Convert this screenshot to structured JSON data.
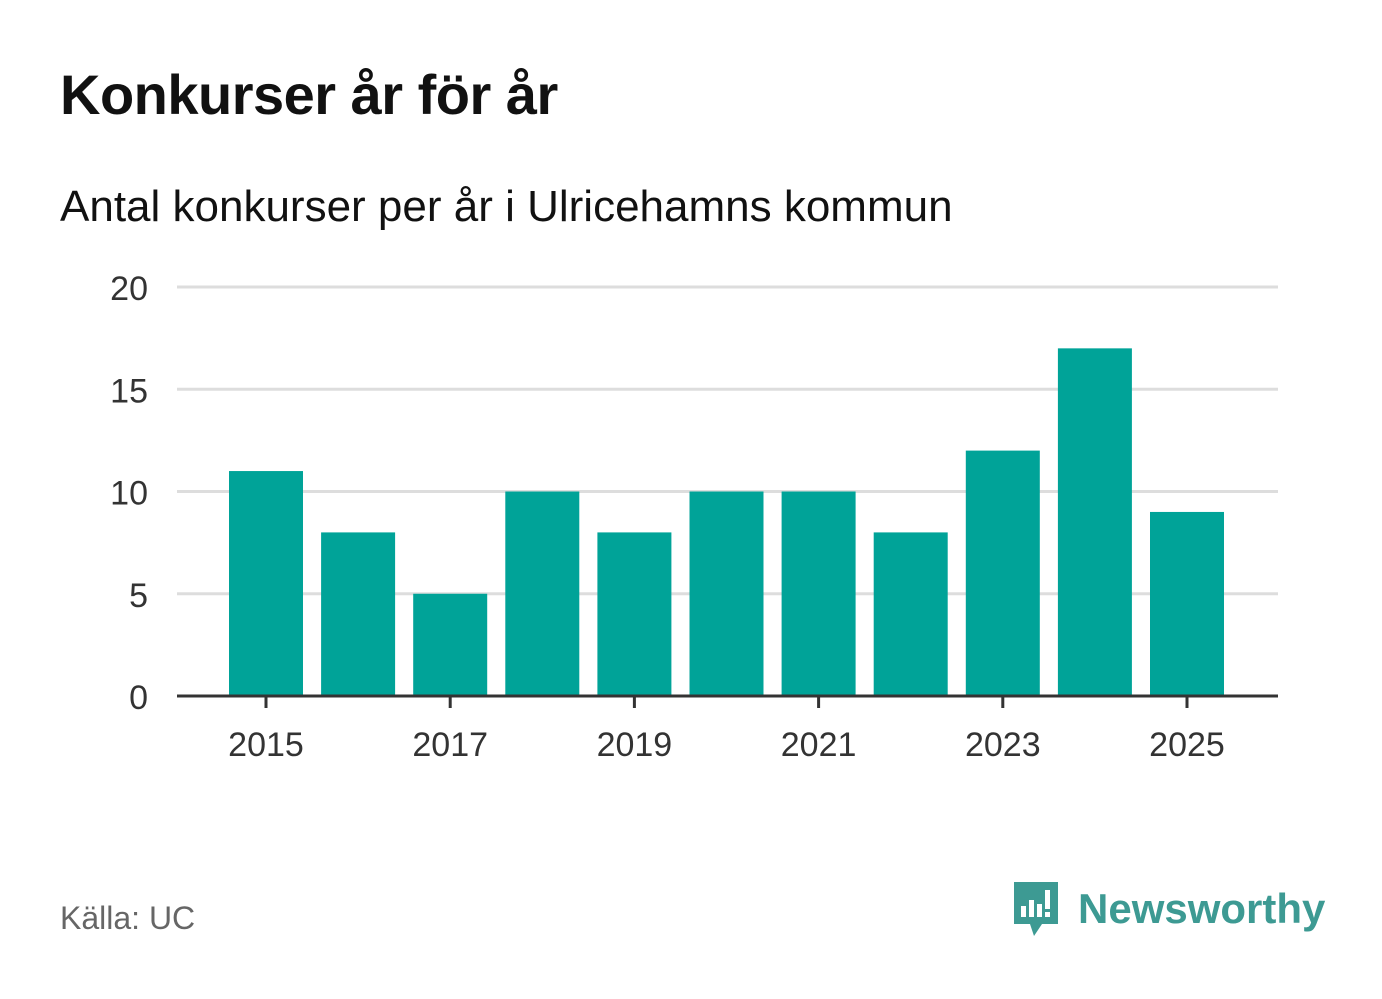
{
  "title": "Konkurser år för år",
  "subtitle": "Antal konkurser per år i Ulricehamns kommun",
  "source": "Källa: UC",
  "brand": {
    "name": "Newsworthy",
    "logo_icon": "newsworthy-logo-icon",
    "color": "#3d9a93"
  },
  "chart_data": {
    "type": "bar",
    "title": "Konkurser år för år",
    "subtitle": "Antal konkurser per år i Ulricehamns kommun",
    "xlabel": "",
    "ylabel": "",
    "categories": [
      2015,
      2016,
      2017,
      2018,
      2019,
      2020,
      2021,
      2022,
      2023,
      2024,
      2025
    ],
    "values": [
      11,
      8,
      5,
      10,
      8,
      10,
      10,
      8,
      12,
      17,
      9
    ],
    "ylim": [
      0,
      20
    ],
    "yticks": [
      0,
      5,
      10,
      15,
      20
    ],
    "xticks": [
      2015,
      2017,
      2019,
      2021,
      2023,
      2025
    ],
    "grid": true,
    "bar_color": "#00a398",
    "grid_color": "#dddddd",
    "axis_color": "#333333"
  }
}
